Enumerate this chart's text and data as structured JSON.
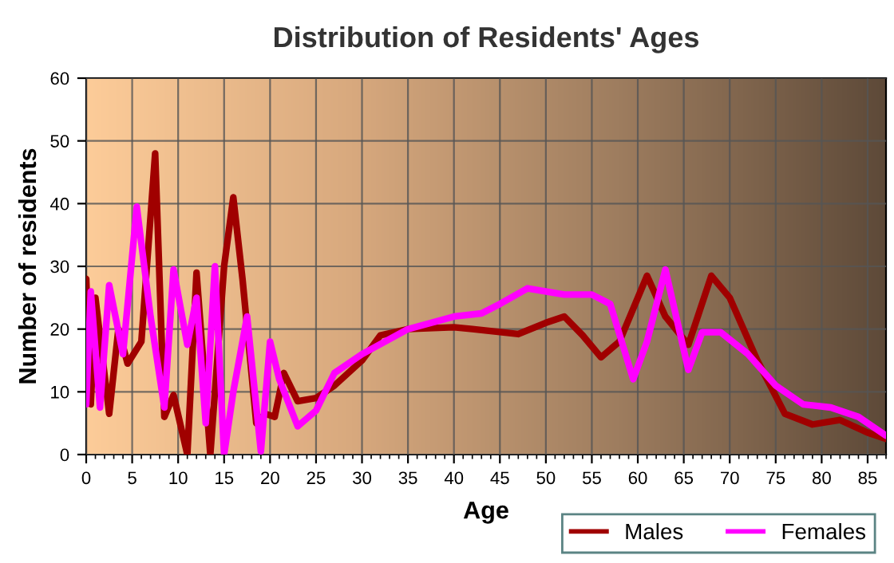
{
  "chart_data": {
    "type": "line",
    "title": "Distribution of Residents' Ages",
    "xlabel": "Age",
    "ylabel": "Number of residents",
    "xlim": [
      0,
      87
    ],
    "xticks": [
      0,
      5,
      10,
      15,
      20,
      25,
      30,
      35,
      40,
      45,
      50,
      55,
      60,
      65,
      70,
      75,
      80,
      85
    ],
    "ylim": [
      0,
      60
    ],
    "yticks": [
      0,
      10,
      20,
      30,
      40,
      50,
      60
    ],
    "grid": true,
    "legend": "bottom right",
    "marker": "none",
    "line_style": "solid",
    "series": [
      {
        "name": "Males",
        "color": "#a00000",
        "x": [
          0,
          0.5,
          1,
          2.5,
          3.5,
          4.5,
          6,
          7.5,
          8.5,
          9.5,
          11,
          12,
          13.5,
          15,
          16,
          17,
          18.5,
          19.5,
          20.5,
          21.5,
          23,
          25,
          27,
          30,
          32,
          35,
          40,
          42,
          47,
          50,
          52,
          54,
          56,
          58,
          61,
          63,
          65.5,
          68,
          70,
          73,
          76,
          79,
          82,
          85,
          87
        ],
        "values": [
          28,
          8,
          25,
          6.5,
          20,
          14.5,
          18,
          48,
          6,
          9.5,
          0,
          29,
          0,
          30,
          41,
          28,
          5,
          6.5,
          6,
          13,
          8.5,
          9,
          11,
          15,
          19,
          20,
          20.3,
          20,
          19.2,
          21,
          22,
          19,
          15.5,
          18,
          28.5,
          22,
          17.5,
          28.5,
          25,
          15,
          6.5,
          4.8,
          5.5,
          3.5,
          2.5
        ]
      },
      {
        "name": "Females",
        "color": "#ff00ff",
        "x": [
          0,
          0.5,
          1.5,
          2.5,
          4,
          5.5,
          7,
          8.5,
          9.5,
          11,
          12,
          13,
          14,
          15,
          16,
          17.5,
          19,
          20,
          21,
          23,
          25,
          27,
          30,
          35,
          40,
          43,
          45,
          48,
          52,
          55,
          57,
          59.5,
          61,
          63,
          65.5,
          67,
          69,
          72,
          75,
          78,
          81,
          84,
          87
        ],
        "values": [
          8,
          26,
          7.5,
          27,
          16,
          39.5,
          22,
          7.5,
          29.5,
          17.5,
          25,
          5,
          30,
          0,
          10,
          22,
          0.5,
          18,
          12,
          4.5,
          7,
          13,
          16,
          20,
          22,
          22.5,
          24,
          26.5,
          25.5,
          25.5,
          24,
          12,
          18,
          29.5,
          13.5,
          19.5,
          19.5,
          16,
          11,
          8,
          7.5,
          6,
          3
        ]
      }
    ]
  }
}
